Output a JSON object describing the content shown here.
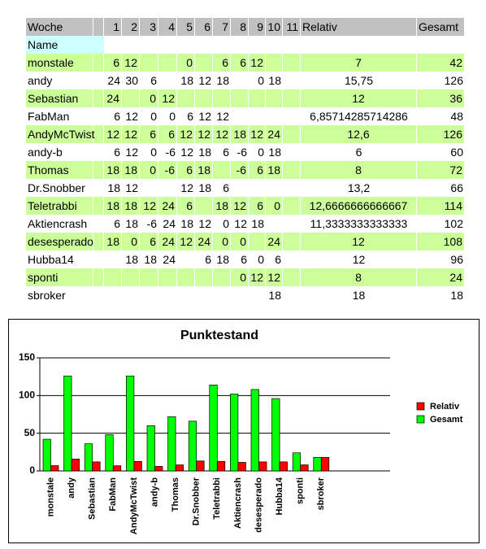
{
  "table": {
    "header": [
      "Woche",
      null,
      "1",
      "2",
      "3",
      "4",
      "5",
      "6",
      "7",
      "8",
      "9",
      "10",
      "11",
      "Relativ",
      "Gesamt"
    ],
    "subheader": "Name",
    "rows": [
      [
        "monstale",
        null,
        6,
        12,
        null,
        null,
        0,
        null,
        6,
        6,
        12,
        null,
        null,
        "7",
        42
      ],
      [
        "andy",
        null,
        24,
        30,
        6,
        null,
        18,
        12,
        18,
        null,
        0,
        18,
        null,
        "15,75",
        126
      ],
      [
        "Sebastian",
        null,
        24,
        null,
        0,
        12,
        null,
        null,
        null,
        null,
        null,
        null,
        null,
        "12",
        36
      ],
      [
        "FabMan",
        null,
        6,
        12,
        0,
        0,
        6,
        12,
        12,
        null,
        null,
        null,
        null,
        "6,85714285714286",
        48
      ],
      [
        "AndyMcTwist",
        null,
        12,
        12,
        6,
        6,
        12,
        12,
        12,
        18,
        12,
        24,
        null,
        "12,6",
        126
      ],
      [
        "andy-b",
        null,
        6,
        12,
        0,
        -6,
        12,
        18,
        6,
        -6,
        0,
        18,
        null,
        "6",
        60
      ],
      [
        "Thomas",
        null,
        18,
        18,
        0,
        -6,
        6,
        18,
        null,
        -6,
        6,
        18,
        null,
        "8",
        72
      ],
      [
        "Dr.Snobber",
        null,
        18,
        12,
        null,
        null,
        12,
        18,
        6,
        null,
        null,
        null,
        null,
        "13,2",
        66
      ],
      [
        "Teletrabbi",
        null,
        18,
        18,
        12,
        24,
        6,
        null,
        18,
        12,
        6,
        0,
        null,
        "12,6666666666667",
        114
      ],
      [
        "Aktiencrash",
        null,
        6,
        18,
        -6,
        24,
        18,
        12,
        0,
        12,
        18,
        null,
        null,
        "11,3333333333333",
        102
      ],
      [
        "desesperado",
        null,
        18,
        0,
        6,
        24,
        12,
        24,
        0,
        0,
        null,
        24,
        null,
        "12",
        108
      ],
      [
        "Hubba14",
        null,
        null,
        18,
        18,
        24,
        null,
        6,
        18,
        6,
        0,
        6,
        null,
        "12",
        96
      ],
      [
        "sponti",
        null,
        null,
        null,
        null,
        null,
        null,
        null,
        null,
        0,
        12,
        12,
        null,
        "8",
        24
      ],
      [
        "sbroker",
        null,
        null,
        null,
        null,
        null,
        null,
        null,
        null,
        null,
        null,
        18,
        null,
        "18",
        18
      ]
    ]
  },
  "chart_data": {
    "type": "bar",
    "title": "Punktestand",
    "categories": [
      "monstale",
      "andy",
      "Sebastian",
      "FabMan",
      "AndyMcTwist",
      "andy-b",
      "Thomas",
      "Dr.Snobber",
      "Teletrabbi",
      "Aktiencrash",
      "desesperado",
      "Hubba14",
      "sponti",
      "sbroker"
    ],
    "series": [
      {
        "name": "Gesamt",
        "color": "#00ff00",
        "values": [
          42,
          126,
          36,
          48,
          126,
          60,
          72,
          66,
          114,
          102,
          108,
          96,
          24,
          18
        ]
      },
      {
        "name": "Relativ",
        "color": "#ff0000",
        "values": [
          7,
          15.75,
          12,
          6.85714285714286,
          12.6,
          6,
          8,
          13.2,
          12.6666666666667,
          11.3333333333333,
          12,
          12,
          8,
          18
        ]
      }
    ],
    "ylim": [
      0,
      150
    ],
    "yticks": [
      0,
      50,
      100,
      150
    ],
    "grid": true,
    "legend": "right"
  }
}
